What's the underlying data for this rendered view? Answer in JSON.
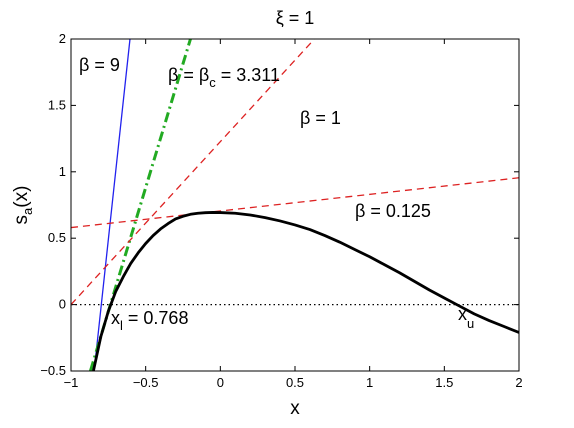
{
  "chart_data": {
    "type": "line",
    "title": "ξ = 1",
    "xlabel": "x",
    "ylabel_main": "s",
    "ylabel_sub": "a",
    "ylabel_rest": "(x)",
    "xlim": [
      -1,
      2
    ],
    "ylim": [
      -0.5,
      2
    ],
    "xticks": [
      -1,
      -0.5,
      0,
      0.5,
      1,
      1.5,
      2
    ],
    "xtick_labels": [
      "−1",
      "−0.5",
      "0",
      "0.5",
      "1",
      "1.5",
      "2"
    ],
    "yticks": [
      -0.5,
      0,
      0.5,
      1,
      1.5,
      2
    ],
    "ytick_labels": [
      "−0.5",
      "0",
      "0.5",
      "1",
      "1.5",
      "2"
    ],
    "grid": false,
    "curve": {
      "color": "#000000",
      "x": [
        -0.85,
        -0.8,
        -0.75,
        -0.7,
        -0.65,
        -0.6,
        -0.55,
        -0.5,
        -0.45,
        -0.4,
        -0.35,
        -0.3,
        -0.25,
        -0.2,
        -0.15,
        -0.1,
        -0.05,
        0,
        0.1,
        0.2,
        0.3,
        0.4,
        0.5,
        0.6,
        0.7,
        0.8,
        0.9,
        1.0,
        1.1,
        1.2,
        1.3,
        1.4,
        1.5,
        1.6,
        1.7,
        1.8,
        1.9,
        2.0
      ],
      "y": [
        -0.5,
        -0.24,
        -0.05,
        0.1,
        0.21,
        0.31,
        0.39,
        0.46,
        0.52,
        0.57,
        0.61,
        0.645,
        0.665,
        0.68,
        0.688,
        0.692,
        0.694,
        0.693,
        0.688,
        0.675,
        0.655,
        0.63,
        0.6,
        0.565,
        0.52,
        0.47,
        0.415,
        0.36,
        0.3,
        0.24,
        0.175,
        0.11,
        0.05,
        -0.01,
        -0.07,
        -0.12,
        -0.165,
        -0.21
      ]
    },
    "lines": [
      {
        "beta": 9,
        "label": "β = 9",
        "color": "#2222ee",
        "dash": "solid",
        "x": [
          -0.845,
          -0.605
        ],
        "y": [
          -0.5,
          2.0
        ]
      },
      {
        "beta": 3.311,
        "label_a": "β = β",
        "label_sub": "c",
        "label_b": " = 3.311",
        "color": "#22aa22",
        "dash": "dashdot",
        "x": [
          -0.87,
          -0.2
        ],
        "y": [
          -0.5,
          2.0
        ]
      },
      {
        "beta": 1,
        "label": "β = 1",
        "color": "#dd2222",
        "dash": "dashed",
        "x": [
          -1,
          0.63
        ],
        "y": [
          0.0,
          2.0
        ]
      },
      {
        "beta": 0.125,
        "label": "β = 0.125",
        "color": "#dd2222",
        "dash": "dashed",
        "x": [
          -1,
          2
        ],
        "y": [
          0.58,
          0.955
        ]
      }
    ],
    "zero_line": {
      "y": 0,
      "style": "dotted"
    },
    "annotations": {
      "xl_main": "x",
      "xl_sub": "l",
      "xl_value": " = 0.768",
      "xu_main": "x",
      "xu_sub": "u"
    }
  }
}
